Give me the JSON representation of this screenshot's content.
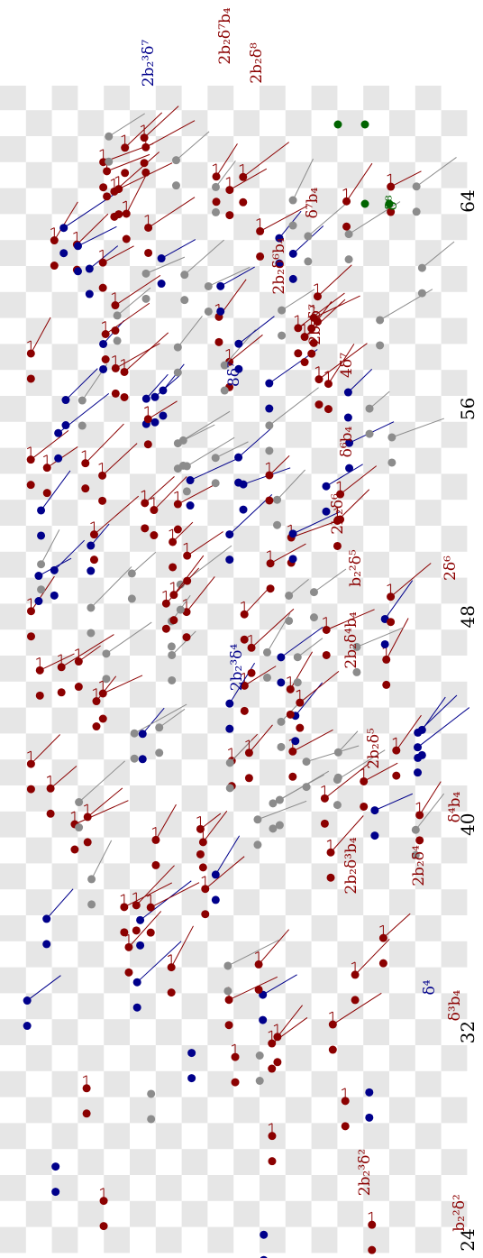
{
  "axis": {
    "stems": [
      "24",
      "32",
      "40",
      "48",
      "56",
      "64"
    ]
  },
  "labels": [
    "b₂²δ²",
    "2b₂³δ²",
    "δ³b₄",
    "δ⁴",
    "2b₂δ³b₄",
    "2b₂δ⁴",
    "δ⁴b₄",
    "2b₂δ⁵",
    "2b₂³δ⁴",
    "2b₂δ⁴b₄",
    "b₂²δ⁵",
    "2δ⁶",
    "2b₂δ⁶",
    "δ⁶b₄",
    "4δ⁷",
    "8δ⁷",
    "2b₂δ⁷",
    "2b₂δ⁶b₄",
    "δ⁷b₄",
    "δ⁸",
    "2b₂³δ⁷",
    "2b₂δ⁸",
    "2b₂δ⁷b₄"
  ]
}
